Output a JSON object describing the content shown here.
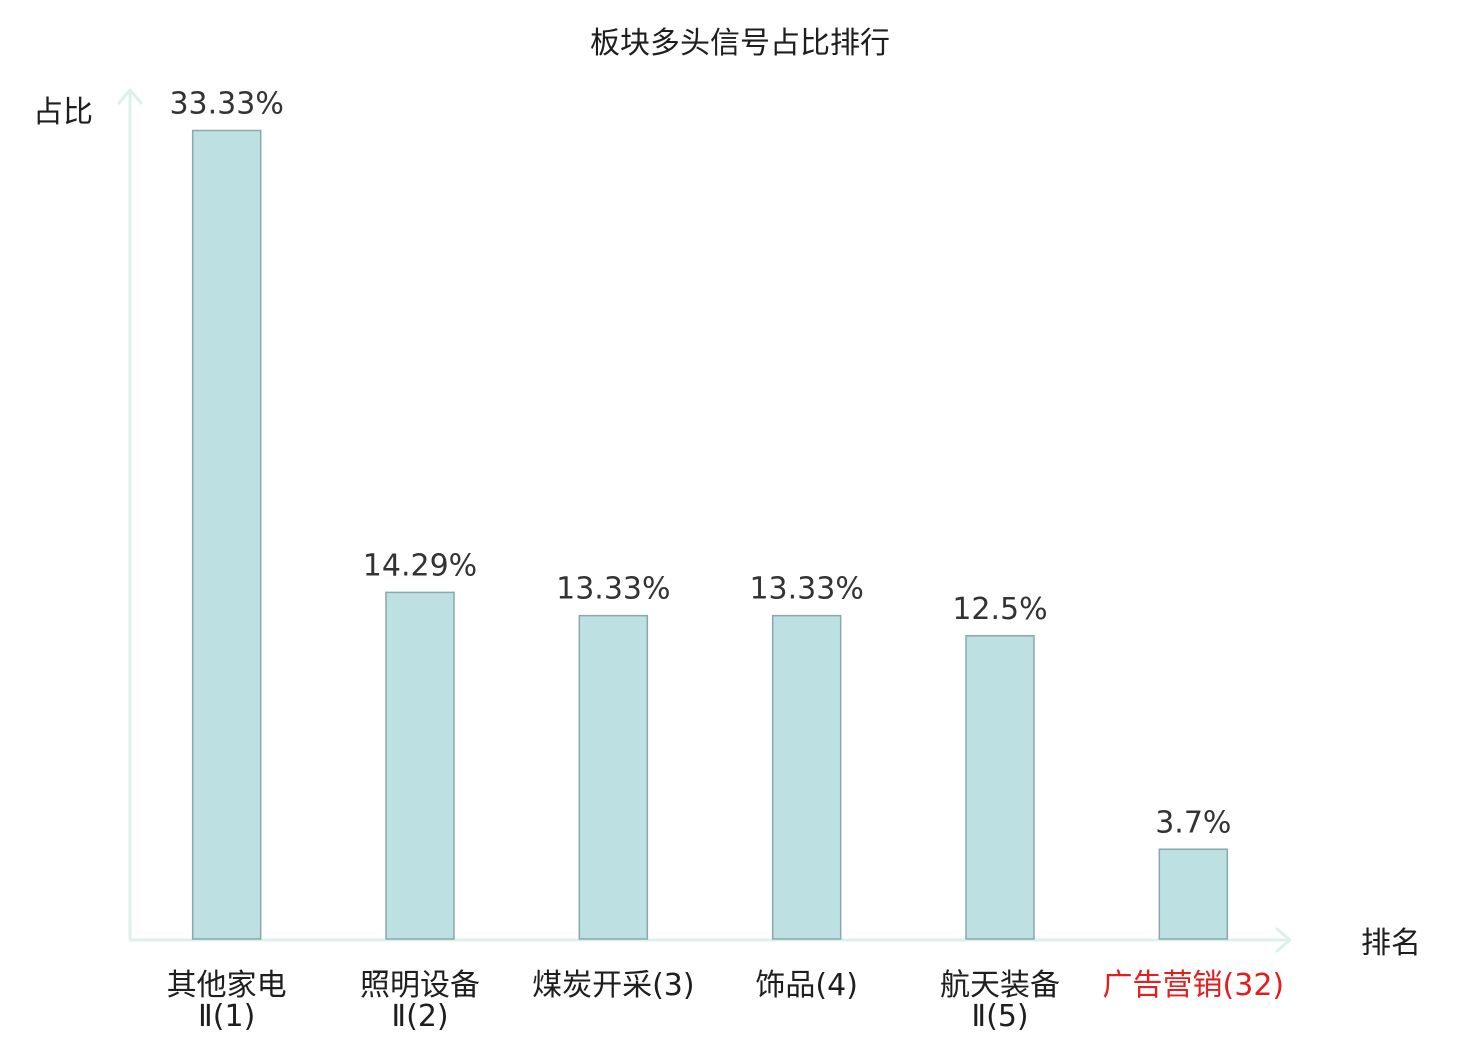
{
  "chart_data": {
    "type": "bar",
    "title": "板块多头信号占比排行",
    "xlabel": "排名",
    "ylabel": "占比",
    "categories": [
      "其他家电Ⅱ(1)",
      "照明设备Ⅱ(2)",
      "煤炭开采(3)",
      "饰品(4)",
      "航天装备Ⅱ(5)",
      "广告营销(32)"
    ],
    "values": [
      33.33,
      14.29,
      13.33,
      13.33,
      12.5,
      3.7
    ],
    "value_labels": [
      "33.33%",
      "14.29%",
      "13.33%",
      "13.33%",
      "12.5%",
      "3.7%"
    ],
    "ylim": [
      0,
      35
    ],
    "grid": false,
    "show_legend": false,
    "highlight_index": 5
  },
  "colors": {
    "bar_fill": "#bde0e3",
    "bar_stroke": "#8aa7aa",
    "axis": "#dcf1ec",
    "text": "#1e1e1e",
    "value_text": "#333333",
    "highlight_text": "#e41e1e"
  }
}
